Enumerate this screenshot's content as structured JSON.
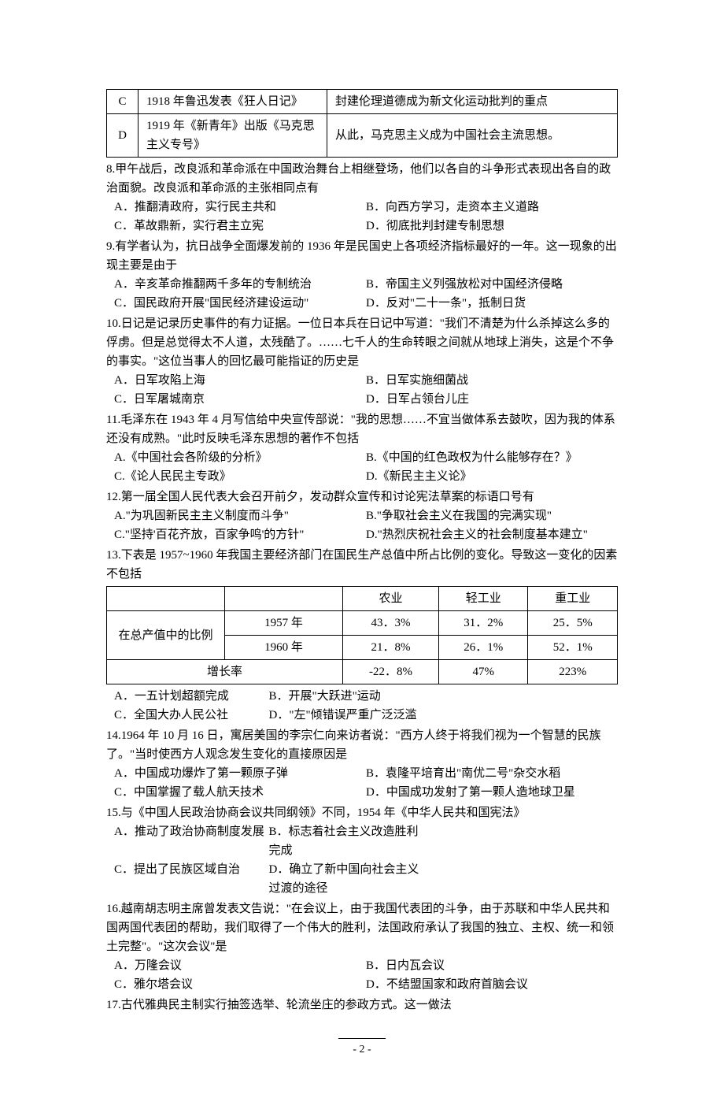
{
  "table1": {
    "rows": [
      {
        "k": "C",
        "a": "1918 年鲁迅发表《狂人日记》",
        "b": "封建伦理道德成为新文化运动批判的重点"
      },
      {
        "k": "D",
        "a": "1919 年《新青年》出版《马克思主义专号》",
        "b": "从此，马克思主义成为中国社会主流思想。"
      }
    ]
  },
  "q8": {
    "stem": "8.甲午战后，改良派和革命派在中国政治舞台上相继登场，他们以各自的斗争形式表现出各自的政治面貌。改良派和革命派的主张相同点有",
    "a": "A．推翻清政府，实行民主共和",
    "b": "B．向西方学习，走资本主义道路",
    "c": "C．革故鼎新，实行君主立宪",
    "d": "D．彻底批判封建专制思想"
  },
  "q9": {
    "stem": "9.有学者认为，抗日战争全面爆发前的 1936 年是民国史上各项经济指标最好的一年。这一现象的出现主要是由于",
    "a": "A．辛亥革命推翻两千多年的专制统治",
    "b": "B．帝国主义列强放松对中国经济侵略",
    "c": "C．国民政府开展\"国民经济建设运动\"",
    "d": "D．反对\"二十一条\"，抵制日货"
  },
  "q10": {
    "stem": "10.日记是记录历史事件的有力证据。一位日本兵在日记中写道：\"我们不清楚为什么杀掉这么多的俘虏。但是总觉得太不人道，太残酷了。……七千人的生命转眼之间就从地球上消失，这是个不争的事实。\"这位当事人的回忆最可能指证的历史是",
    "a": "A．日军攻陷上海",
    "b": "B．日军实施细菌战",
    "c": "C．日军屠城南京",
    "d": "D．日军占领台儿庄"
  },
  "q11": {
    "stem": "11.毛泽东在 1943 年 4 月写信给中央宣传部说：\"我的思想……不宜当做体系去鼓吹，因为我的体系还没有成熟。\"此时反映毛泽东思想的著作不包括",
    "a": "A.《中国社会各阶级的分析》",
    "b": "B.《中国的红色政权为什么能够存在？》",
    "c": "C.《论人民民主专政》",
    "d": "D.《新民主主义论》"
  },
  "q12": {
    "stem": "12.第一届全国人民代表大会召开前夕，发动群众宣传和讨论宪法草案的标语口号有",
    "a": "A.\"为巩固新民主主义制度而斗争\"",
    "b": "B.\"争取社会主义在我国的完满实现\"",
    "c": "C.\"坚持'百花齐放，百家争鸣'的方针\"",
    "d": "D.\"热烈庆祝社会主义的社会制度基本建立\""
  },
  "q13": {
    "stem": "13.下表是 1957~1960 年我国主要经济部门在国民生产总值中所占比例的变化。导致这一变化的因素不包括",
    "table": {
      "headers": [
        "",
        "",
        "农业",
        "轻工业",
        "重工业"
      ],
      "rows": [
        [
          "在总产值中的比例",
          "1957 年",
          "43．3%",
          "31．2%",
          "25．5%"
        ],
        [
          "",
          "1960 年",
          "21．8%",
          "26．1%",
          "52．1%"
        ],
        [
          "增长率",
          "",
          "-22．8%",
          "47%",
          "223%"
        ]
      ]
    },
    "a": "A．一五计划超额完成",
    "b": "B．开展\"大跃进\"运动",
    "c": "C．全国大办人民公社",
    "d": "D．\"左\"倾错误严重广泛泛滥"
  },
  "q14": {
    "stem": "14.1964 年 10 月 16 日，寓居美国的李宗仁向来访者说：\"西方人终于将我们视为一个智慧的民族了。\"当时使西方人观念发生变化的直接原因是",
    "a": "A．中国成功爆炸了第一颗原子弹",
    "b": "B．袁隆平培育出\"南优二号\"杂交水稻",
    "c": "C．中国掌握了载人航天技术",
    "d": "D．中国成功发射了第一颗人造地球卫星"
  },
  "q15": {
    "stem": "15.与《中国人民政治协商会议共同纲领》不同，1954 年《中华人民共和国宪法》",
    "a": "A．推动了政治协商制度发展",
    "b": "B．标志着社会主义改造胜利完成",
    "c": "C．提出了民族区域自治",
    "d": "D．确立了新中国向社会主义过渡的途径"
  },
  "q16": {
    "stem": "16.越南胡志明主席曾发表文告说：\"在会议上，由于我国代表团的斗争，由于苏联和中华人民共和国两国代表团的帮助，我们取得了一个伟大的胜利，法国政府承认了我国的独立、主权、统一和领土完整\"。\"这次会议\"是",
    "a": "A．万隆会议",
    "b": "B．日内瓦会议",
    "c": "C．雅尔塔会议",
    "d": "D．不结盟国家和政府首脑会议"
  },
  "q17": {
    "stem": "17.古代雅典民主制实行抽签选举、轮流坐庄的参政方式。这一做法"
  },
  "pageNum": "- 2 -"
}
